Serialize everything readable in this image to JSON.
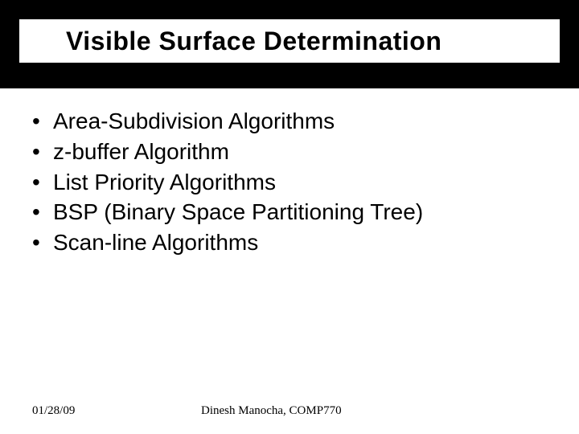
{
  "colors": {
    "background": "#ffffff",
    "banner": "#000000",
    "text": "#000000",
    "rule": "#000000"
  },
  "typography": {
    "title_fontsize": 32,
    "title_weight": "bold",
    "bullet_fontsize": 28,
    "footer_fontsize": 15,
    "body_family": "Arial",
    "footer_family": "Times New Roman"
  },
  "title": "Visible Surface Determination",
  "bullets": [
    "Area-Subdivision Algorithms",
    "z-buffer Algorithm",
    "List Priority Algorithms",
    "BSP (Binary Space Partitioning Tree)",
    "Scan-line Algorithms"
  ],
  "footer": {
    "date": "01/28/09",
    "center": "Dinesh Manocha,  COMP770"
  }
}
